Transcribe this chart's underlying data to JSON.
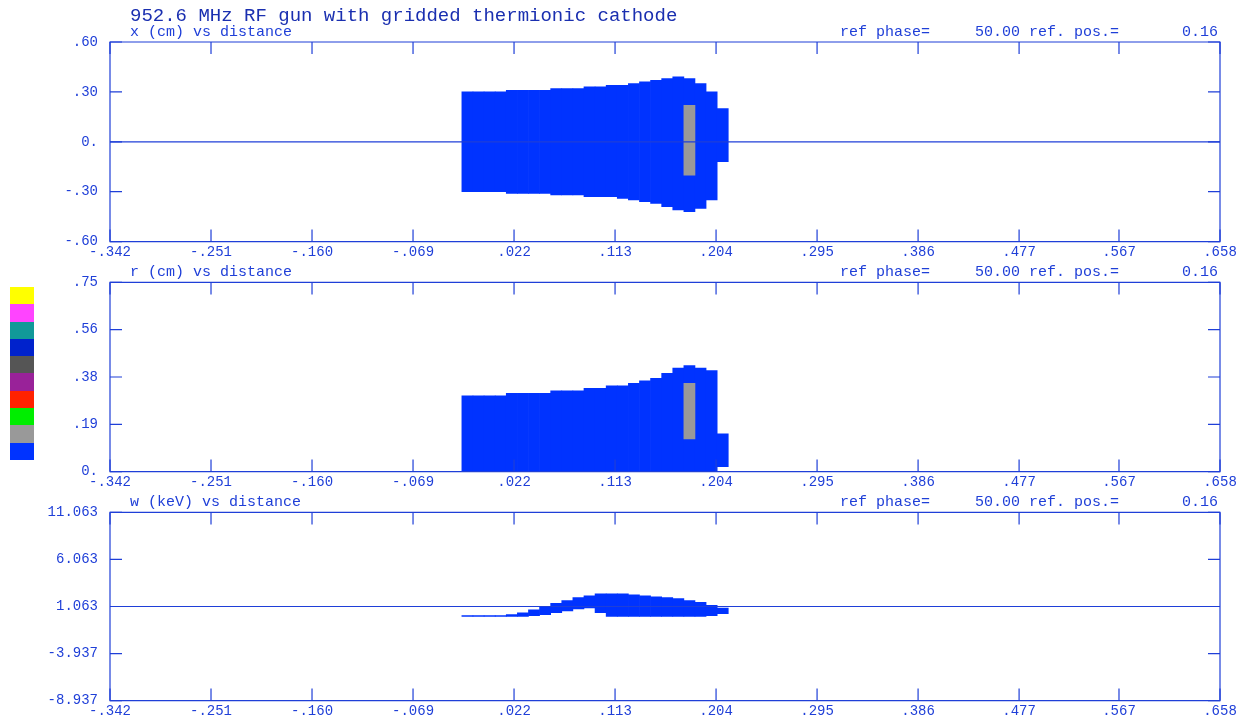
{
  "chart_data": [
    {
      "type": "bar",
      "title": "952.6 MHz RF gun with gridded thermionic cathode",
      "subtitle": "x (cm) vs distance",
      "annotations": [
        "ref phase=     50.00 ref. pos.=       0.16"
      ],
      "xlim": [
        -0.342,
        0.658
      ],
      "xticks": [
        {
          "value": -0.342,
          "label": "-.342"
        },
        {
          "value": -0.251,
          "label": "-.251"
        },
        {
          "value": -0.16,
          "label": "-.160"
        },
        {
          "value": -0.069,
          "label": "-.069"
        },
        {
          "value": 0.022,
          "label": ".022"
        },
        {
          "value": 0.113,
          "label": ".113"
        },
        {
          "value": 0.204,
          "label": ".204"
        },
        {
          "value": 0.295,
          "label": ".295"
        },
        {
          "value": 0.386,
          "label": ".386"
        },
        {
          "value": 0.477,
          "label": ".477"
        },
        {
          "value": 0.567,
          "label": ".567"
        },
        {
          "value": 0.658,
          "label": ".658"
        }
      ],
      "ylim": [
        -0.6,
        0.6
      ],
      "yticks": [
        {
          "value": -0.6,
          "label": "-.60"
        },
        {
          "value": -0.3,
          "label": "-.30"
        },
        {
          "value": 0,
          "label": "0."
        },
        {
          "value": 0.3,
          "label": ".30"
        },
        {
          "value": 0.6,
          "label": ".60"
        }
      ],
      "ref_lines": [
        {
          "axis": "y",
          "value": 0,
          "color": "#1f3fd8"
        }
      ],
      "series": [
        {
          "color": "#0033ff",
          "x": [
            -0.02,
            -0.01,
            0,
            0.01,
            0.02,
            0.03,
            0.04,
            0.05,
            0.06,
            0.07,
            0.08,
            0.09,
            0.1,
            0.11,
            0.12,
            0.13,
            0.14,
            0.15,
            0.16,
            0.17,
            0.18,
            0.19,
            0.2,
            0.21
          ],
          "base": [
            -0.3,
            -0.3,
            -0.3,
            -0.3,
            -0.31,
            -0.31,
            -0.31,
            -0.31,
            -0.32,
            -0.32,
            -0.32,
            -0.33,
            -0.33,
            -0.33,
            -0.34,
            -0.35,
            -0.36,
            -0.37,
            -0.39,
            -0.41,
            -0.42,
            -0.4,
            -0.35,
            -0.12
          ],
          "values": [
            0.6,
            0.6,
            0.6,
            0.6,
            0.62,
            0.62,
            0.62,
            0.62,
            0.64,
            0.64,
            0.64,
            0.66,
            0.66,
            0.67,
            0.68,
            0.7,
            0.72,
            0.74,
            0.77,
            0.8,
            0.8,
            0.75,
            0.65,
            0.32
          ]
        },
        {
          "color": "#999999",
          "x": [
            0.18
          ],
          "base": [
            -0.2
          ],
          "values": [
            0.42
          ]
        }
      ]
    },
    {
      "type": "bar",
      "title": "r (cm) vs distance",
      "annotations": [
        "ref phase=     50.00 ref. pos.=       0.16"
      ],
      "xlim": [
        -0.342,
        0.658
      ],
      "xticks": [
        {
          "value": -0.342,
          "label": "-.342"
        },
        {
          "value": -0.251,
          "label": "-.251"
        },
        {
          "value": -0.16,
          "label": "-.160"
        },
        {
          "value": -0.069,
          "label": "-.069"
        },
        {
          "value": 0.022,
          "label": ".022"
        },
        {
          "value": 0.113,
          "label": ".113"
        },
        {
          "value": 0.204,
          "label": ".204"
        },
        {
          "value": 0.295,
          "label": ".295"
        },
        {
          "value": 0.386,
          "label": ".386"
        },
        {
          "value": 0.477,
          "label": ".477"
        },
        {
          "value": 0.567,
          "label": ".567"
        },
        {
          "value": 0.658,
          "label": ".658"
        }
      ],
      "ylim": [
        0,
        0.75
      ],
      "yticks": [
        {
          "value": 0,
          "label": "0."
        },
        {
          "value": 0.1875,
          "label": ".19"
        },
        {
          "value": 0.375,
          "label": ".38"
        },
        {
          "value": 0.5625,
          "label": ".56"
        },
        {
          "value": 0.75,
          "label": ".75"
        }
      ],
      "series": [
        {
          "color": "#0033ff",
          "x": [
            -0.02,
            -0.01,
            0,
            0.01,
            0.02,
            0.03,
            0.04,
            0.05,
            0.06,
            0.07,
            0.08,
            0.09,
            0.1,
            0.11,
            0.12,
            0.13,
            0.14,
            0.15,
            0.16,
            0.17,
            0.18,
            0.19,
            0.2,
            0.21
          ],
          "base": [
            0,
            0,
            0,
            0,
            0,
            0,
            0,
            0,
            0,
            0,
            0,
            0,
            0,
            0,
            0,
            0,
            0,
            0,
            0,
            0,
            0,
            0,
            0,
            0.02
          ],
          "values": [
            0.3,
            0.3,
            0.3,
            0.3,
            0.31,
            0.31,
            0.31,
            0.31,
            0.32,
            0.32,
            0.32,
            0.33,
            0.33,
            0.34,
            0.34,
            0.35,
            0.36,
            0.37,
            0.39,
            0.41,
            0.42,
            0.41,
            0.4,
            0.13
          ]
        },
        {
          "color": "#999999",
          "x": [
            0.18
          ],
          "base": [
            0.13
          ],
          "values": [
            0.22
          ]
        }
      ]
    },
    {
      "type": "bar",
      "title": "w (keV) vs distance",
      "annotations": [
        "ref phase=     50.00 ref. pos.=       0.16"
      ],
      "xlim": [
        -0.342,
        0.658
      ],
      "xticks": [
        {
          "value": -0.342,
          "label": "-.342"
        },
        {
          "value": -0.251,
          "label": "-.251"
        },
        {
          "value": -0.16,
          "label": "-.160"
        },
        {
          "value": -0.069,
          "label": "-.069"
        },
        {
          "value": 0.022,
          "label": ".022"
        },
        {
          "value": 0.113,
          "label": ".113"
        },
        {
          "value": 0.204,
          "label": ".204"
        },
        {
          "value": 0.295,
          "label": ".295"
        },
        {
          "value": 0.386,
          "label": ".386"
        },
        {
          "value": 0.477,
          "label": ".477"
        },
        {
          "value": 0.567,
          "label": ".567"
        },
        {
          "value": 0.658,
          "label": ".658"
        }
      ],
      "ylim": [
        -8.937,
        11.063
      ],
      "yticks": [
        {
          "value": -8.937,
          "label": "-8.937"
        },
        {
          "value": -3.937,
          "label": "-3.937"
        },
        {
          "value": 1.063,
          "label": "1.063"
        },
        {
          "value": 6.063,
          "label": "6.063"
        },
        {
          "value": 11.063,
          "label": "11.063"
        }
      ],
      "ref_lines": [
        {
          "axis": "y",
          "value": 1.063,
          "color": "#1f3fd8"
        }
      ],
      "series": [
        {
          "color": "#0033ff",
          "x": [
            -0.02,
            -0.01,
            0,
            0.01,
            0.02,
            0.03,
            0.04,
            0.05,
            0.06,
            0.07,
            0.08,
            0.09,
            0.1,
            0.11,
            0.12,
            0.13,
            0.14,
            0.15,
            0.16,
            0.17,
            0.18,
            0.19,
            0.2,
            0.21
          ],
          "base": [
            0,
            0,
            0,
            0,
            0,
            0,
            0.1,
            0.2,
            0.4,
            0.6,
            0.8,
            0.9,
            0.4,
            0,
            0,
            0,
            0,
            0,
            0,
            0,
            0,
            0,
            0.1,
            0.3
          ],
          "values": [
            0.1,
            0.1,
            0.1,
            0.1,
            0.2,
            0.4,
            0.6,
            0.8,
            1,
            1.1,
            1.2,
            1.3,
            2,
            2.4,
            2.4,
            2.3,
            2.2,
            2.1,
            2,
            1.9,
            1.7,
            1.5,
            1.1,
            0.6
          ]
        }
      ]
    }
  ]
}
